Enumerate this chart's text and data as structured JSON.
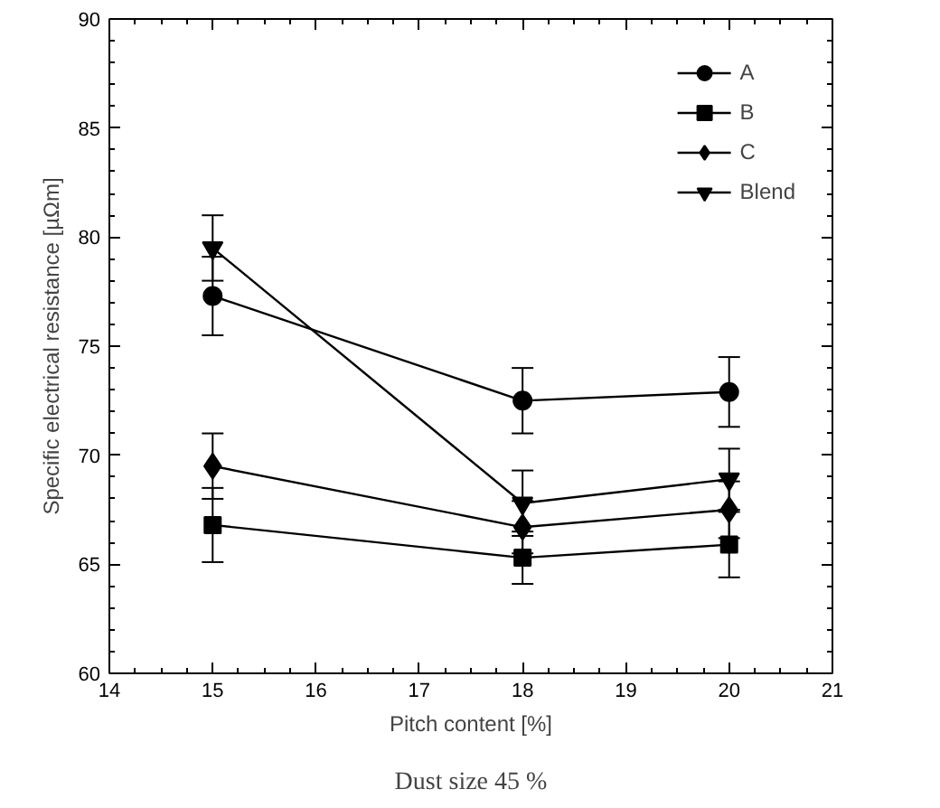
{
  "chart_data": {
    "type": "line",
    "xlabel": "Pitch content [%]",
    "ylabel": "Specific electrical resistance [µΩm]",
    "annotations": [
      "Dust size 45 %"
    ],
    "x": [
      15,
      18,
      20
    ],
    "series": [
      {
        "name": "A",
        "color": "#000000",
        "marker": "circle",
        "values": [
          77.3,
          72.5,
          72.9
        ],
        "errors": [
          1.8,
          1.5,
          1.6
        ]
      },
      {
        "name": "B",
        "color": "#000000",
        "marker": "square",
        "values": [
          66.8,
          65.3,
          65.9
        ],
        "errors": [
          1.7,
          1.2,
          1.5
        ]
      },
      {
        "name": "C",
        "color": "#000000",
        "marker": "diamond",
        "values": [
          69.5,
          66.7,
          67.5
        ],
        "errors": [
          1.5,
          1.2,
          1.3
        ]
      },
      {
        "name": "Blend",
        "color": "#000000",
        "marker": "triangle",
        "values": [
          79.5,
          67.8,
          68.9
        ],
        "errors": [
          1.5,
          1.5,
          1.4
        ]
      }
    ],
    "xlim": [
      14,
      21
    ],
    "xticks": [
      14,
      15,
      16,
      17,
      18,
      19,
      20,
      21
    ],
    "ylim": [
      60,
      90
    ],
    "yticks": [
      60,
      65,
      70,
      75,
      80,
      85,
      90
    ],
    "grid": false,
    "legend": "top right",
    "line_style": "solid"
  }
}
